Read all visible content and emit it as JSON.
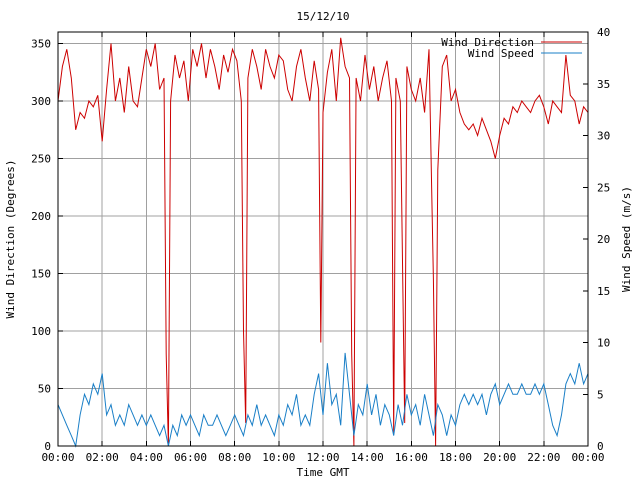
{
  "chart_data": {
    "type": "line",
    "title": "15/12/10",
    "xlabel": "Time GMT",
    "ylabel_left": "Wind Direction (Degrees)",
    "ylabel_right": "Wind Speed (m/s)",
    "x_ticks": [
      "00:00",
      "02:00",
      "04:00",
      "06:00",
      "08:00",
      "10:00",
      "12:00",
      "14:00",
      "16:00",
      "18:00",
      "20:00",
      "22:00",
      "00:00"
    ],
    "y_left_ticks": [
      "0",
      "50",
      "100",
      "150",
      "200",
      "250",
      "300",
      "350"
    ],
    "y_right_ticks": [
      "0",
      "5",
      "10",
      "15",
      "20",
      "25",
      "30",
      "35",
      "40"
    ],
    "xlim_hours": [
      0,
      24
    ],
    "ylim_left": [
      0,
      360
    ],
    "ylim_right": [
      0,
      40
    ],
    "grid": true,
    "legend_position": "top-right",
    "series": [
      {
        "name": "Wind Direction",
        "axis": "left",
        "color": "#cc0000",
        "points": [
          [
            0.0,
            300
          ],
          [
            0.2,
            330
          ],
          [
            0.4,
            345
          ],
          [
            0.6,
            320
          ],
          [
            0.8,
            275
          ],
          [
            1.0,
            290
          ],
          [
            1.2,
            285
          ],
          [
            1.4,
            300
          ],
          [
            1.6,
            295
          ],
          [
            1.8,
            305
          ],
          [
            2.0,
            265
          ],
          [
            2.2,
            310
          ],
          [
            2.4,
            350
          ],
          [
            2.6,
            300
          ],
          [
            2.8,
            320
          ],
          [
            3.0,
            290
          ],
          [
            3.2,
            330
          ],
          [
            3.4,
            300
          ],
          [
            3.6,
            295
          ],
          [
            3.8,
            320
          ],
          [
            4.0,
            345
          ],
          [
            4.2,
            330
          ],
          [
            4.4,
            350
          ],
          [
            4.6,
            310
          ],
          [
            4.8,
            320
          ],
          [
            4.9,
            80
          ],
          [
            5.0,
            0
          ],
          [
            5.1,
            300
          ],
          [
            5.3,
            340
          ],
          [
            5.5,
            320
          ],
          [
            5.7,
            335
          ],
          [
            5.9,
            300
          ],
          [
            6.1,
            345
          ],
          [
            6.3,
            330
          ],
          [
            6.5,
            350
          ],
          [
            6.7,
            320
          ],
          [
            6.9,
            345
          ],
          [
            7.1,
            330
          ],
          [
            7.3,
            310
          ],
          [
            7.5,
            340
          ],
          [
            7.7,
            325
          ],
          [
            7.9,
            345
          ],
          [
            8.1,
            335
          ],
          [
            8.3,
            300
          ],
          [
            8.4,
            100
          ],
          [
            8.5,
            20
          ],
          [
            8.6,
            320
          ],
          [
            8.8,
            345
          ],
          [
            9.0,
            330
          ],
          [
            9.2,
            310
          ],
          [
            9.4,
            345
          ],
          [
            9.6,
            330
          ],
          [
            9.8,
            320
          ],
          [
            10.0,
            340
          ],
          [
            10.2,
            335
          ],
          [
            10.4,
            310
          ],
          [
            10.6,
            300
          ],
          [
            10.8,
            330
          ],
          [
            11.0,
            345
          ],
          [
            11.2,
            320
          ],
          [
            11.4,
            300
          ],
          [
            11.6,
            335
          ],
          [
            11.8,
            310
          ],
          [
            11.9,
            90
          ],
          [
            12.0,
            290
          ],
          [
            12.2,
            325
          ],
          [
            12.4,
            345
          ],
          [
            12.6,
            300
          ],
          [
            12.8,
            355
          ],
          [
            13.0,
            330
          ],
          [
            13.2,
            320
          ],
          [
            13.3,
            80
          ],
          [
            13.4,
            0
          ],
          [
            13.5,
            320
          ],
          [
            13.7,
            300
          ],
          [
            13.9,
            340
          ],
          [
            14.1,
            310
          ],
          [
            14.3,
            330
          ],
          [
            14.5,
            300
          ],
          [
            14.7,
            320
          ],
          [
            14.9,
            335
          ],
          [
            15.1,
            300
          ],
          [
            15.2,
            10
          ],
          [
            15.3,
            320
          ],
          [
            15.5,
            300
          ],
          [
            15.7,
            20
          ],
          [
            15.8,
            330
          ],
          [
            16.0,
            310
          ],
          [
            16.2,
            300
          ],
          [
            16.4,
            320
          ],
          [
            16.6,
            290
          ],
          [
            16.8,
            345
          ],
          [
            17.0,
            145
          ],
          [
            17.1,
            0
          ],
          [
            17.2,
            240
          ],
          [
            17.4,
            330
          ],
          [
            17.6,
            340
          ],
          [
            17.8,
            300
          ],
          [
            18.0,
            310
          ],
          [
            18.2,
            290
          ],
          [
            18.4,
            280
          ],
          [
            18.6,
            275
          ],
          [
            18.8,
            280
          ],
          [
            19.0,
            270
          ],
          [
            19.2,
            285
          ],
          [
            19.4,
            275
          ],
          [
            19.6,
            265
          ],
          [
            19.8,
            250
          ],
          [
            20.0,
            270
          ],
          [
            20.2,
            285
          ],
          [
            20.4,
            280
          ],
          [
            20.6,
            295
          ],
          [
            20.8,
            290
          ],
          [
            21.0,
            300
          ],
          [
            21.2,
            295
          ],
          [
            21.4,
            290
          ],
          [
            21.6,
            300
          ],
          [
            21.8,
            305
          ],
          [
            22.0,
            295
          ],
          [
            22.2,
            280
          ],
          [
            22.4,
            300
          ],
          [
            22.6,
            295
          ],
          [
            22.8,
            290
          ],
          [
            23.0,
            340
          ],
          [
            23.2,
            305
          ],
          [
            23.4,
            300
          ],
          [
            23.6,
            280
          ],
          [
            23.8,
            295
          ],
          [
            24.0,
            290
          ]
        ]
      },
      {
        "name": "Wind Speed",
        "axis": "right",
        "color": "#1a7fc7",
        "points": [
          [
            0.0,
            4
          ],
          [
            0.2,
            3
          ],
          [
            0.4,
            2
          ],
          [
            0.6,
            1
          ],
          [
            0.8,
            0
          ],
          [
            1.0,
            3
          ],
          [
            1.2,
            5
          ],
          [
            1.4,
            4
          ],
          [
            1.6,
            6
          ],
          [
            1.8,
            5
          ],
          [
            2.0,
            7
          ],
          [
            2.2,
            3
          ],
          [
            2.4,
            4
          ],
          [
            2.6,
            2
          ],
          [
            2.8,
            3
          ],
          [
            3.0,
            2
          ],
          [
            3.2,
            4
          ],
          [
            3.4,
            3
          ],
          [
            3.6,
            2
          ],
          [
            3.8,
            3
          ],
          [
            4.0,
            2
          ],
          [
            4.2,
            3
          ],
          [
            4.4,
            2
          ],
          [
            4.6,
            1
          ],
          [
            4.8,
            2
          ],
          [
            5.0,
            0
          ],
          [
            5.2,
            2
          ],
          [
            5.4,
            1
          ],
          [
            5.6,
            3
          ],
          [
            5.8,
            2
          ],
          [
            6.0,
            3
          ],
          [
            6.2,
            2
          ],
          [
            6.4,
            1
          ],
          [
            6.6,
            3
          ],
          [
            6.8,
            2
          ],
          [
            7.0,
            2
          ],
          [
            7.2,
            3
          ],
          [
            7.4,
            2
          ],
          [
            7.6,
            1
          ],
          [
            7.8,
            2
          ],
          [
            8.0,
            3
          ],
          [
            8.2,
            2
          ],
          [
            8.4,
            1
          ],
          [
            8.6,
            3
          ],
          [
            8.8,
            2
          ],
          [
            9.0,
            4
          ],
          [
            9.2,
            2
          ],
          [
            9.4,
            3
          ],
          [
            9.6,
            2
          ],
          [
            9.8,
            1
          ],
          [
            10.0,
            3
          ],
          [
            10.2,
            2
          ],
          [
            10.4,
            4
          ],
          [
            10.6,
            3
          ],
          [
            10.8,
            5
          ],
          [
            11.0,
            2
          ],
          [
            11.2,
            3
          ],
          [
            11.4,
            2
          ],
          [
            11.6,
            5
          ],
          [
            11.8,
            7
          ],
          [
            12.0,
            3
          ],
          [
            12.2,
            8
          ],
          [
            12.4,
            4
          ],
          [
            12.6,
            5
          ],
          [
            12.8,
            2
          ],
          [
            13.0,
            9
          ],
          [
            13.2,
            5
          ],
          [
            13.4,
            1
          ],
          [
            13.6,
            4
          ],
          [
            13.8,
            3
          ],
          [
            14.0,
            6
          ],
          [
            14.2,
            3
          ],
          [
            14.4,
            5
          ],
          [
            14.6,
            2
          ],
          [
            14.8,
            4
          ],
          [
            15.0,
            3
          ],
          [
            15.2,
            1
          ],
          [
            15.4,
            4
          ],
          [
            15.6,
            2
          ],
          [
            15.8,
            5
          ],
          [
            16.0,
            3
          ],
          [
            16.2,
            4
          ],
          [
            16.4,
            2
          ],
          [
            16.6,
            5
          ],
          [
            16.8,
            3
          ],
          [
            17.0,
            1
          ],
          [
            17.2,
            4
          ],
          [
            17.4,
            3
          ],
          [
            17.6,
            1
          ],
          [
            17.8,
            3
          ],
          [
            18.0,
            2
          ],
          [
            18.2,
            4
          ],
          [
            18.4,
            5
          ],
          [
            18.6,
            4
          ],
          [
            18.8,
            5
          ],
          [
            19.0,
            4
          ],
          [
            19.2,
            5
          ],
          [
            19.4,
            3
          ],
          [
            19.6,
            5
          ],
          [
            19.8,
            6
          ],
          [
            20.0,
            4
          ],
          [
            20.2,
            5
          ],
          [
            20.4,
            6
          ],
          [
            20.6,
            5
          ],
          [
            20.8,
            5
          ],
          [
            21.0,
            6
          ],
          [
            21.2,
            5
          ],
          [
            21.4,
            5
          ],
          [
            21.6,
            6
          ],
          [
            21.8,
            5
          ],
          [
            22.0,
            6
          ],
          [
            22.2,
            4
          ],
          [
            22.4,
            2
          ],
          [
            22.6,
            1
          ],
          [
            22.8,
            3
          ],
          [
            23.0,
            6
          ],
          [
            23.2,
            7
          ],
          [
            23.4,
            6
          ],
          [
            23.6,
            8
          ],
          [
            23.8,
            6
          ],
          [
            24.0,
            7
          ]
        ]
      }
    ]
  }
}
